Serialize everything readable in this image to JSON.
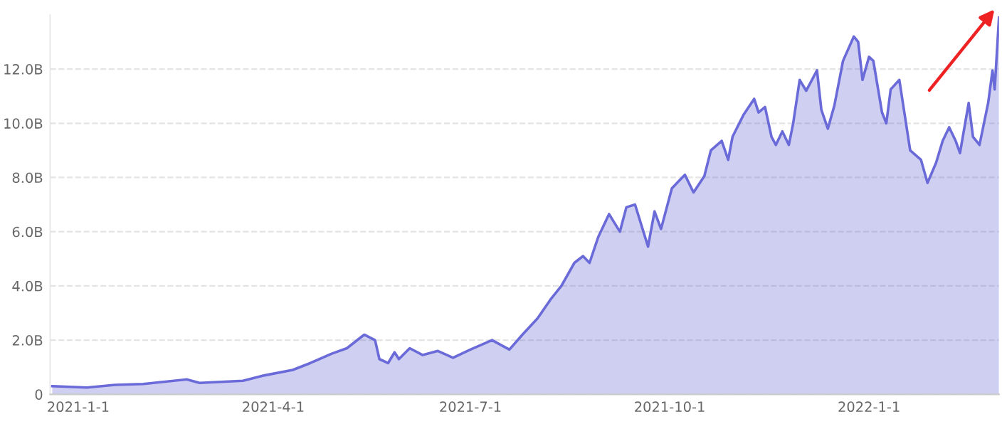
{
  "chart_data": {
    "type": "area",
    "x": [
      "2020-12-20",
      "2021-01-05",
      "2021-01-18",
      "2021-01-31",
      "2021-02-20",
      "2021-02-26",
      "2021-03-18",
      "2021-03-28",
      "2021-04-10",
      "2021-04-18",
      "2021-04-28",
      "2021-05-05",
      "2021-05-13",
      "2021-05-18",
      "2021-05-20",
      "2021-05-24",
      "2021-05-27",
      "2021-05-29",
      "2021-06-03",
      "2021-06-09",
      "2021-06-16",
      "2021-06-23",
      "2021-07-01",
      "2021-07-11",
      "2021-07-19",
      "2021-07-25",
      "2021-08-01",
      "2021-08-07",
      "2021-08-12",
      "2021-08-18",
      "2021-08-22",
      "2021-08-25",
      "2021-08-29",
      "2021-09-03",
      "2021-09-08",
      "2021-09-11",
      "2021-09-15",
      "2021-09-21",
      "2021-09-24",
      "2021-09-27",
      "2021-10-02",
      "2021-10-08",
      "2021-10-12",
      "2021-10-17",
      "2021-10-20",
      "2021-10-25",
      "2021-10-28",
      "2021-10-30",
      "2021-11-04",
      "2021-11-09",
      "2021-11-11",
      "2021-11-14",
      "2021-11-17",
      "2021-11-19",
      "2021-11-22",
      "2021-11-25",
      "2021-11-27",
      "2021-11-30",
      "2021-12-03",
      "2021-12-08",
      "2021-12-10",
      "2021-12-13",
      "2021-12-16",
      "2021-12-20",
      "2021-12-25",
      "2021-12-27",
      "2021-12-29",
      "2022-01-01",
      "2022-01-03",
      "2022-01-07",
      "2022-01-09",
      "2022-01-11",
      "2022-01-15",
      "2022-01-20",
      "2022-01-25",
      "2022-01-28",
      "2022-02-01",
      "2022-02-04",
      "2022-02-07",
      "2022-02-10",
      "2022-02-12",
      "2022-02-16",
      "2022-02-18",
      "2022-02-21",
      "2022-02-25",
      "2022-02-27",
      "2022-02-28",
      "2022-03-02"
    ],
    "series": [
      {
        "color": "#6a6ad8",
        "values": [
          0.3,
          0.25,
          0.35,
          0.38,
          0.55,
          0.42,
          0.5,
          0.7,
          0.9,
          1.15,
          1.5,
          1.7,
          2.2,
          2.0,
          1.3,
          1.15,
          1.55,
          1.3,
          1.7,
          1.45,
          1.6,
          1.35,
          1.65,
          2.0,
          1.65,
          2.2,
          2.8,
          3.5,
          4.0,
          4.85,
          5.1,
          4.85,
          5.8,
          6.65,
          6.0,
          6.9,
          7.0,
          5.45,
          6.75,
          6.1,
          7.6,
          8.1,
          7.45,
          8.05,
          9.0,
          9.35,
          8.65,
          9.5,
          10.3,
          10.9,
          10.4,
          10.6,
          9.5,
          9.2,
          9.7,
          9.2,
          10.0,
          11.6,
          11.2,
          11.95,
          10.5,
          9.8,
          10.65,
          12.3,
          13.2,
          13.0,
          11.6,
          12.45,
          12.3,
          10.4,
          10.0,
          11.25,
          11.6,
          9.0,
          8.65,
          7.8,
          8.55,
          9.35,
          9.85,
          9.35,
          8.9,
          10.75,
          9.5,
          9.2,
          10.75,
          11.95,
          11.25,
          13.9
        ]
      }
    ],
    "xlim": [
      "2020-12-19",
      "2022-03-02"
    ],
    "xticks": [
      {
        "value": "2021-01-01",
        "label": "2021-1-1"
      },
      {
        "value": "2021-04-01",
        "label": "2021-4-1"
      },
      {
        "value": "2021-07-01",
        "label": "2021-7-1"
      },
      {
        "value": "2021-10-01",
        "label": "2021-10-1"
      },
      {
        "value": "2022-01-01",
        "label": "2022-1-1"
      }
    ],
    "ylim": [
      0,
      14
    ],
    "yticks": [
      0,
      {
        "value": 2,
        "label": "2.0B"
      },
      {
        "value": 4,
        "label": "4.0B"
      },
      {
        "value": 6,
        "label": "6.0B"
      },
      {
        "value": 8,
        "label": "8.0B"
      },
      {
        "value": 10,
        "label": "10.0B"
      },
      {
        "value": 12,
        "label": "12.0B"
      }
    ],
    "grid": "y",
    "line_style": "solid",
    "marker": "none"
  }
}
